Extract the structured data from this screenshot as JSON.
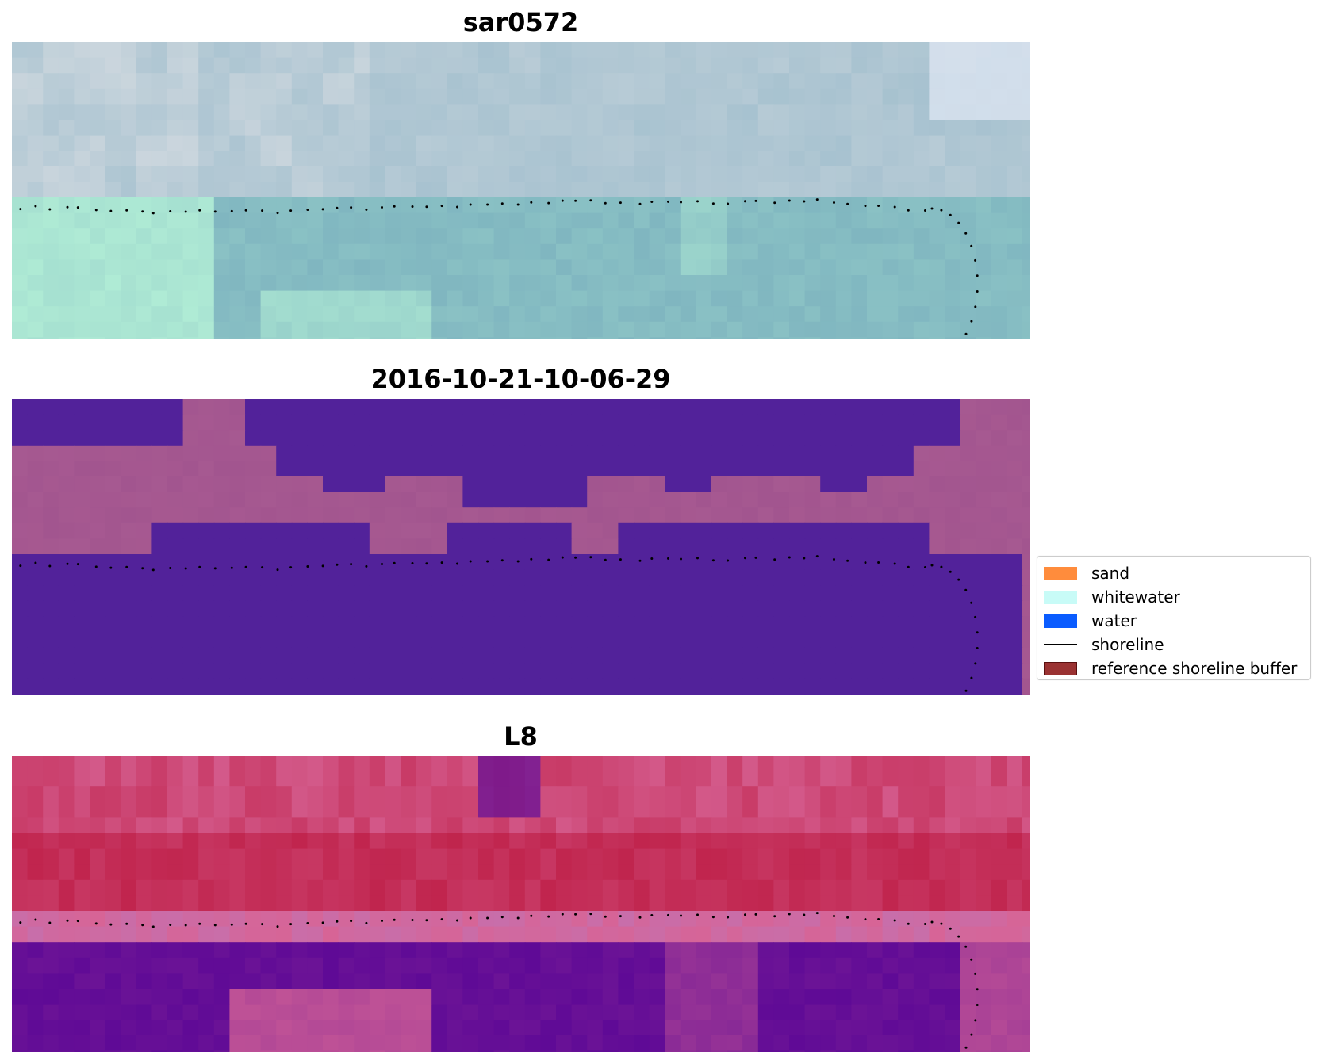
{
  "panels": [
    {
      "title": "sar0572",
      "style": "sar"
    },
    {
      "title": "2016-10-21-10-06-29",
      "style": "classified"
    },
    {
      "title": "L8",
      "style": "index"
    }
  ],
  "legend": {
    "items": [
      {
        "label": "sand",
        "color": "#ff8c3c",
        "kind": "patch"
      },
      {
        "label": "whitewater",
        "color": "#c8fbf7",
        "kind": "patch"
      },
      {
        "label": "water",
        "color": "#0a5cff",
        "kind": "patch"
      },
      {
        "label": "shoreline",
        "color": "#000000",
        "kind": "line"
      },
      {
        "label": "reference shoreline buffer",
        "color": "#9a3232",
        "kind": "patch-border"
      }
    ]
  },
  "colors": {
    "classified_water": "#52229a",
    "classified_sand": "#a2558f",
    "shoreline_dots": "#000000"
  }
}
